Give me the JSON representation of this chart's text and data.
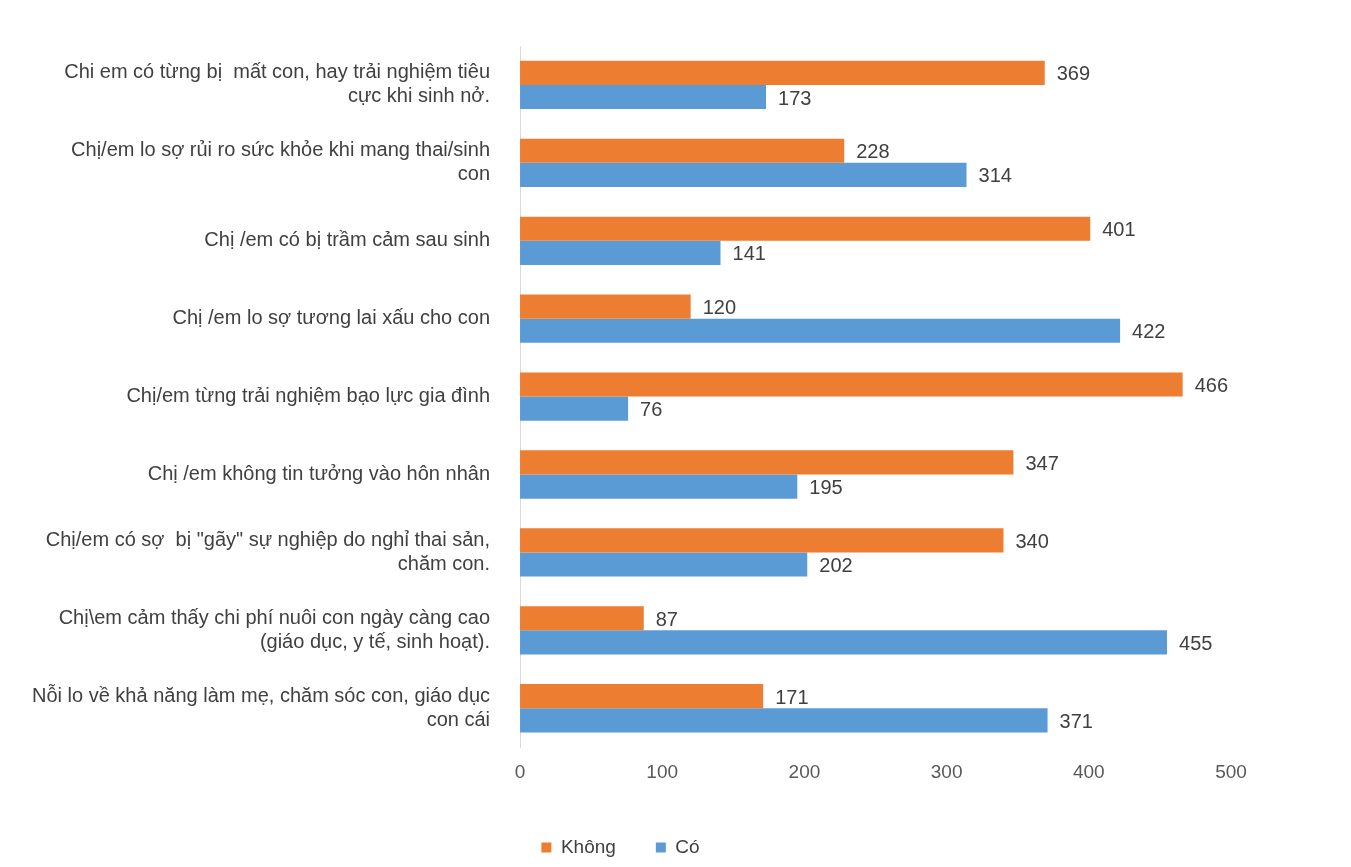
{
  "chart_data": {
    "type": "bar",
    "orientation": "horizontal",
    "categories": [
      "Chi em có từng bị  mất con, hay trải nghiệm tiêu cực khi sinh nở.",
      "Chị/em lo sợ rủi ro sức khỏe khi mang thai/sinh con",
      "Chị /em có bị trầm cảm sau sinh",
      "Chị /em lo sợ tương lai xấu cho con",
      "Chị/em từng trải nghiệm bạo lực gia đình",
      "Chị /em không tin tưởng vào hôn nhân",
      "Chị/em có sợ  bị \"gãy\" sự nghiệp do nghỉ thai sản, chăm con.",
      "Chị\\em cảm thấy chi phí nuôi con ngày càng cao (giáo dục, y tế, sinh hoạt).",
      "Nỗi lo về khả năng làm mẹ, chăm sóc con, giáo dục con cái"
    ],
    "series": [
      {
        "name": "Không",
        "color": "#ed7d31",
        "values": [
          369,
          228,
          401,
          120,
          466,
          347,
          340,
          87,
          171
        ]
      },
      {
        "name": "Có",
        "color": "#5b9bd5",
        "values": [
          173,
          314,
          141,
          422,
          76,
          195,
          202,
          455,
          371
        ]
      }
    ],
    "xlim": [
      0,
      500
    ],
    "xticks": [
      0,
      100,
      200,
      300,
      400,
      500
    ],
    "grid": false,
    "legend": "bottom",
    "data_labels": true
  }
}
